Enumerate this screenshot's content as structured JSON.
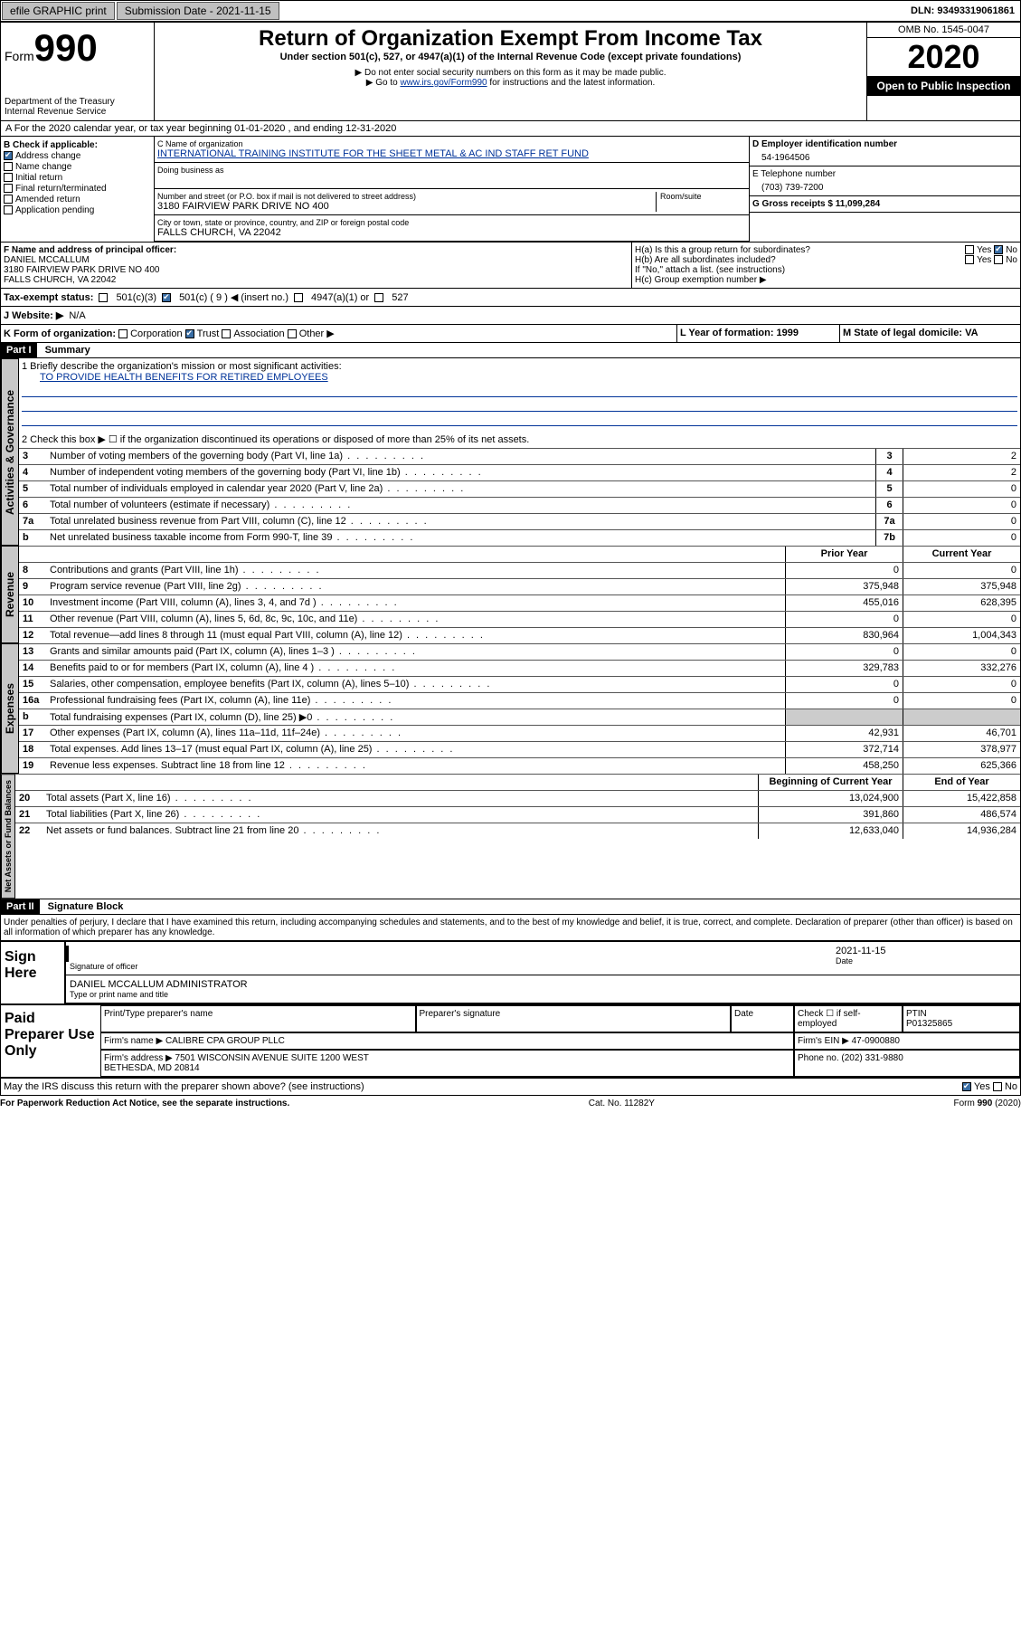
{
  "topbar": {
    "efile": "efile GRAPHIC print",
    "subdate_label": "Submission Date - 2021-11-15",
    "dln": "DLN: 93493319061861"
  },
  "header": {
    "form_word": "Form",
    "form_num": "990",
    "dept1": "Department of the Treasury",
    "dept2": "Internal Revenue Service",
    "title": "Return of Organization Exempt From Income Tax",
    "sub": "Under section 501(c), 527, or 4947(a)(1) of the Internal Revenue Code (except private foundations)",
    "note1": "▶ Do not enter social security numbers on this form as it may be made public.",
    "note2_pre": "▶ Go to ",
    "note2_link": "www.irs.gov/Form990",
    "note2_post": " for instructions and the latest information.",
    "omb": "OMB No. 1545-0047",
    "year": "2020",
    "open": "Open to Public Inspection"
  },
  "A": "A For the 2020 calendar year, or tax year beginning 01-01-2020   , and ending 12-31-2020",
  "B": {
    "label": "B Check if applicable:",
    "items": [
      "Address change",
      "Name change",
      "Initial return",
      "Final return/terminated",
      "Amended return",
      "Application pending"
    ],
    "checked_index": 0
  },
  "C": {
    "name_lbl": "C Name of organization",
    "name": "INTERNATIONAL TRAINING INSTITUTE FOR THE SHEET METAL & AC IND STAFF RET FUND",
    "dba_lbl": "Doing business as",
    "addr_lbl": "Number and street (or P.O. box if mail is not delivered to street address)",
    "room_lbl": "Room/suite",
    "addr": "3180 FAIRVIEW PARK DRIVE NO 400",
    "city_lbl": "City or town, state or province, country, and ZIP or foreign postal code",
    "city": "FALLS CHURCH, VA  22042"
  },
  "D": {
    "lbl": "D Employer identification number",
    "val": "54-1964506"
  },
  "E": {
    "lbl": "E Telephone number",
    "val": "(703) 739-7200"
  },
  "G": {
    "lbl": "G Gross receipts $ 11,099,284"
  },
  "F": {
    "lbl": "F  Name and address of principal officer:",
    "name": "DANIEL MCCALLUM",
    "addr1": "3180 FAIRVIEW PARK DRIVE NO 400",
    "addr2": "FALLS CHURCH, VA  22042"
  },
  "H": {
    "a": "H(a)  Is this a group return for subordinates?",
    "b": "H(b)  Are all subordinates included?",
    "bnote": "If \"No,\" attach a list. (see instructions)",
    "c": "H(c)  Group exemption number ▶",
    "yes": "Yes",
    "no": "No"
  },
  "I": {
    "lbl": "Tax-exempt status:",
    "c1": "501(c)(3)",
    "c2": "501(c) ( 9 ) ◀ (insert no.)",
    "c3": "4947(a)(1) or",
    "c4": "527"
  },
  "J": {
    "lbl": "J   Website: ▶",
    "val": "N/A"
  },
  "K": {
    "lbl": "K Form of organization:",
    "o1": "Corporation",
    "o2": "Trust",
    "o3": "Association",
    "o4": "Other ▶"
  },
  "L": {
    "lbl": "L Year of formation: 1999"
  },
  "M": {
    "lbl": "M State of legal domicile: VA"
  },
  "part1": {
    "bar": "Part I",
    "title": "Summary"
  },
  "summary": {
    "line1_lbl": "1  Briefly describe the organization's mission or most significant activities:",
    "mission": "TO PROVIDE HEALTH BENEFITS FOR RETIRED EMPLOYEES",
    "line2": "2   Check this box ▶ ☐  if the organization discontinued its operations or disposed of more than 25% of its net assets.",
    "rows_ag": [
      {
        "n": "3",
        "t": "Number of voting members of the governing body (Part VI, line 1a)",
        "box": "3",
        "v": "2"
      },
      {
        "n": "4",
        "t": "Number of independent voting members of the governing body (Part VI, line 1b)",
        "box": "4",
        "v": "2"
      },
      {
        "n": "5",
        "t": "Total number of individuals employed in calendar year 2020 (Part V, line 2a)",
        "box": "5",
        "v": "0"
      },
      {
        "n": "6",
        "t": "Total number of volunteers (estimate if necessary)",
        "box": "6",
        "v": "0"
      },
      {
        "n": "7a",
        "t": "Total unrelated business revenue from Part VIII, column (C), line 12",
        "box": "7a",
        "v": "0"
      },
      {
        "n": "b",
        "t": "Net unrelated business taxable income from Form 990-T, line 39",
        "box": "7b",
        "v": "0"
      }
    ],
    "col_hdr_prior": "Prior Year",
    "col_hdr_curr": "Current Year",
    "rows_rev": [
      {
        "n": "8",
        "t": "Contributions and grants (Part VIII, line 1h)",
        "p": "0",
        "c": "0"
      },
      {
        "n": "9",
        "t": "Program service revenue (Part VIII, line 2g)",
        "p": "375,948",
        "c": "375,948"
      },
      {
        "n": "10",
        "t": "Investment income (Part VIII, column (A), lines 3, 4, and 7d )",
        "p": "455,016",
        "c": "628,395"
      },
      {
        "n": "11",
        "t": "Other revenue (Part VIII, column (A), lines 5, 6d, 8c, 9c, 10c, and 11e)",
        "p": "0",
        "c": "0"
      },
      {
        "n": "12",
        "t": "Total revenue—add lines 8 through 11 (must equal Part VIII, column (A), line 12)",
        "p": "830,964",
        "c": "1,004,343"
      }
    ],
    "rows_exp": [
      {
        "n": "13",
        "t": "Grants and similar amounts paid (Part IX, column (A), lines 1–3 )",
        "p": "0",
        "c": "0"
      },
      {
        "n": "14",
        "t": "Benefits paid to or for members (Part IX, column (A), line 4 )",
        "p": "329,783",
        "c": "332,276"
      },
      {
        "n": "15",
        "t": "Salaries, other compensation, employee benefits (Part IX, column (A), lines 5–10)",
        "p": "0",
        "c": "0"
      },
      {
        "n": "16a",
        "t": "Professional fundraising fees (Part IX, column (A), line 11e)",
        "p": "0",
        "c": "0"
      },
      {
        "n": "b",
        "t": "Total fundraising expenses (Part IX, column (D), line 25) ▶0",
        "p": "",
        "c": ""
      },
      {
        "n": "17",
        "t": "Other expenses (Part IX, column (A), lines 11a–11d, 11f–24e)",
        "p": "42,931",
        "c": "46,701"
      },
      {
        "n": "18",
        "t": "Total expenses. Add lines 13–17 (must equal Part IX, column (A), line 25)",
        "p": "372,714",
        "c": "378,977"
      },
      {
        "n": "19",
        "t": "Revenue less expenses. Subtract line 18 from line 12",
        "p": "458,250",
        "c": "625,366"
      }
    ],
    "col_hdr_beg": "Beginning of Current Year",
    "col_hdr_end": "End of Year",
    "rows_na": [
      {
        "n": "20",
        "t": "Total assets (Part X, line 16)",
        "p": "13,024,900",
        "c": "15,422,858"
      },
      {
        "n": "21",
        "t": "Total liabilities (Part X, line 26)",
        "p": "391,860",
        "c": "486,574"
      },
      {
        "n": "22",
        "t": "Net assets or fund balances. Subtract line 21 from line 20",
        "p": "12,633,040",
        "c": "14,936,284"
      }
    ]
  },
  "vtabs": {
    "ag": "Activities & Governance",
    "rev": "Revenue",
    "exp": "Expenses",
    "na": "Net Assets or Fund Balances"
  },
  "part2": {
    "bar": "Part II",
    "title": "Signature Block",
    "decl": "Under penalties of perjury, I declare that I have examined this return, including accompanying schedules and statements, and to the best of my knowledge and belief, it is true, correct, and complete. Declaration of preparer (other than officer) is based on all information of which preparer has any knowledge."
  },
  "sign": {
    "here": "Sign Here",
    "sig_lbl": "Signature of officer",
    "date_lbl": "Date",
    "date": "2021-11-15",
    "name": "DANIEL MCCALLUM  ADMINISTRATOR",
    "name_lbl": "Type or print name and title"
  },
  "paid": {
    "lab": "Paid Preparer Use Only",
    "h1": "Print/Type preparer's name",
    "h2": "Preparer's signature",
    "h3": "Date",
    "h4": "Check ☐ if self-employed",
    "h5_lbl": "PTIN",
    "h5": "P01325865",
    "firm_lbl": "Firm's name   ▶",
    "firm": "CALIBRE CPA GROUP PLLC",
    "ein_lbl": "Firm's EIN ▶",
    "ein": "47-0900880",
    "addr_lbl": "Firm's address ▶",
    "addr": "7501 WISCONSIN AVENUE SUITE 1200 WEST\nBETHESDA, MD  20814",
    "phone_lbl": "Phone no.",
    "phone": "(202) 331-9880"
  },
  "discuss": "May the IRS discuss this return with the preparer shown above? (see instructions)",
  "footer": {
    "left": "For Paperwork Reduction Act Notice, see the separate instructions.",
    "mid": "Cat. No. 11282Y",
    "right": "Form 990 (2020)"
  }
}
